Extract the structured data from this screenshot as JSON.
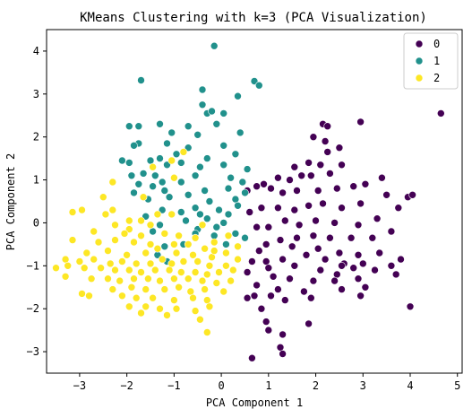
{
  "chart_data": {
    "type": "scatter",
    "title": "KMeans Clustering with k=3 (PCA Visualization)",
    "xlabel": "PCA Component 1",
    "ylabel": "PCA Component 2",
    "xlim": [
      -3.7,
      5.1
    ],
    "ylim": [
      -3.5,
      4.5
    ],
    "xticks": [
      -3,
      -2,
      -1,
      0,
      1,
      2,
      3,
      4,
      5
    ],
    "yticks": [
      -3,
      -2,
      -1,
      0,
      1,
      2,
      3,
      4
    ],
    "grid": false,
    "legend": "top-right",
    "series": [
      {
        "name": "0",
        "color": "#440154",
        "points": [
          [
            4.65,
            2.55
          ],
          [
            2.95,
            2.35
          ],
          [
            2.15,
            2.3
          ],
          [
            2.25,
            2.25
          ],
          [
            1.95,
            2.0
          ],
          [
            2.2,
            1.9
          ],
          [
            2.5,
            1.75
          ],
          [
            1.55,
            1.3
          ],
          [
            2.25,
            1.65
          ],
          [
            2.1,
            1.35
          ],
          [
            1.85,
            1.4
          ],
          [
            2.55,
            1.35
          ],
          [
            2.3,
            1.15
          ],
          [
            1.9,
            1.1
          ],
          [
            1.7,
            1.1
          ],
          [
            1.45,
            1.0
          ],
          [
            1.2,
            1.05
          ],
          [
            1.05,
            0.8
          ],
          [
            0.9,
            0.9
          ],
          [
            3.4,
            1.05
          ],
          [
            3.05,
            0.9
          ],
          [
            2.8,
            0.85
          ],
          [
            2.45,
            0.8
          ],
          [
            2.05,
            0.75
          ],
          [
            1.6,
            0.75
          ],
          [
            1.3,
            0.7
          ],
          [
            0.75,
            0.85
          ],
          [
            0.55,
            0.75
          ],
          [
            3.5,
            0.65
          ],
          [
            3.95,
            0.6
          ],
          [
            2.95,
            0.45
          ],
          [
            2.55,
            0.35
          ],
          [
            2.15,
            0.45
          ],
          [
            1.85,
            0.4
          ],
          [
            1.55,
            0.3
          ],
          [
            1.2,
            0.35
          ],
          [
            0.85,
            0.35
          ],
          [
            0.6,
            0.25
          ],
          [
            3.75,
            0.35
          ],
          [
            3.3,
            0.1
          ],
          [
            2.9,
            -0.05
          ],
          [
            2.4,
            0.0
          ],
          [
            2.0,
            0.05
          ],
          [
            1.65,
            -0.05
          ],
          [
            1.35,
            0.05
          ],
          [
            1.0,
            -0.1
          ],
          [
            0.75,
            -0.1
          ],
          [
            3.6,
            -0.2
          ],
          [
            3.2,
            -0.35
          ],
          [
            2.75,
            -0.35
          ],
          [
            2.3,
            -0.35
          ],
          [
            1.95,
            -0.3
          ],
          [
            1.6,
            -0.35
          ],
          [
            1.25,
            -0.4
          ],
          [
            0.95,
            -0.5
          ],
          [
            0.8,
            -0.65
          ],
          [
            1.5,
            -0.55
          ],
          [
            2.05,
            -0.6
          ],
          [
            2.5,
            -0.7
          ],
          [
            2.9,
            -0.75
          ],
          [
            3.35,
            -0.7
          ],
          [
            3.8,
            -0.85
          ],
          [
            0.95,
            -0.9
          ],
          [
            1.3,
            -0.85
          ],
          [
            1.8,
            -0.75
          ],
          [
            2.2,
            -0.85
          ],
          [
            2.6,
            -0.95
          ],
          [
            3.0,
            -0.95
          ],
          [
            3.6,
            -1.0
          ],
          [
            2.55,
            -1.0
          ],
          [
            2.8,
            -1.05
          ],
          [
            3.25,
            -1.1
          ],
          [
            1.0,
            -1.05
          ],
          [
            1.55,
            -1.0
          ],
          [
            2.1,
            -1.1
          ],
          [
            2.45,
            -1.2
          ],
          [
            3.7,
            -1.2
          ],
          [
            1.1,
            -1.25
          ],
          [
            1.45,
            -1.3
          ],
          [
            1.95,
            -1.35
          ],
          [
            2.4,
            -1.35
          ],
          [
            2.9,
            -1.3
          ],
          [
            3.05,
            -1.5
          ],
          [
            0.65,
            -0.9
          ],
          [
            0.75,
            -1.45
          ],
          [
            1.2,
            -1.55
          ],
          [
            1.75,
            -1.6
          ],
          [
            2.55,
            -1.55
          ],
          [
            2.95,
            -1.7
          ],
          [
            0.55,
            -1.75
          ],
          [
            1.05,
            -1.7
          ],
          [
            1.35,
            -1.8
          ],
          [
            1.9,
            -1.75
          ],
          [
            0.85,
            -2.0
          ],
          [
            4.0,
            -1.95
          ],
          [
            0.95,
            -2.3
          ],
          [
            1.85,
            -2.35
          ],
          [
            1.3,
            -2.6
          ],
          [
            1.0,
            -2.5
          ],
          [
            1.25,
            -2.9
          ],
          [
            0.65,
            -3.15
          ],
          [
            1.3,
            -3.05
          ],
          [
            0.55,
            -1.15
          ],
          [
            0.7,
            -1.7
          ],
          [
            4.05,
            0.65
          ]
        ]
      },
      {
        "name": "1",
        "color": "#21918c",
        "points": [
          [
            -0.15,
            4.12
          ],
          [
            -1.7,
            3.32
          ],
          [
            0.7,
            3.3
          ],
          [
            0.8,
            3.2
          ],
          [
            -0.4,
            3.1
          ],
          [
            0.35,
            2.95
          ],
          [
            -0.4,
            2.75
          ],
          [
            -0.3,
            2.55
          ],
          [
            -0.2,
            2.6
          ],
          [
            0.05,
            2.55
          ],
          [
            -1.3,
            2.3
          ],
          [
            -0.7,
            2.25
          ],
          [
            -1.75,
            2.25
          ],
          [
            -1.95,
            2.25
          ],
          [
            -0.1,
            2.3
          ],
          [
            -1.05,
            2.1
          ],
          [
            0.4,
            2.1
          ],
          [
            -0.5,
            2.05
          ],
          [
            -1.15,
            1.85
          ],
          [
            -1.75,
            1.85
          ],
          [
            -1.85,
            1.8
          ],
          [
            0.05,
            1.8
          ],
          [
            -0.7,
            1.75
          ],
          [
            -0.95,
            1.6
          ],
          [
            0.3,
            1.6
          ],
          [
            -1.3,
            1.5
          ],
          [
            -0.3,
            1.5
          ],
          [
            -2.1,
            1.45
          ],
          [
            -1.95,
            1.4
          ],
          [
            -1.5,
            1.45
          ],
          [
            -0.85,
            1.4
          ],
          [
            -1.15,
            1.35
          ],
          [
            0.05,
            1.35
          ],
          [
            -0.45,
            1.3
          ],
          [
            0.55,
            1.25
          ],
          [
            -1.65,
            1.15
          ],
          [
            -1.4,
            1.1
          ],
          [
            -1.9,
            1.1
          ],
          [
            -0.55,
            1.1
          ],
          [
            0.2,
            1.05
          ],
          [
            0.45,
            0.95
          ],
          [
            -1.25,
            0.95
          ],
          [
            -0.85,
            0.95
          ],
          [
            -1.75,
            0.9
          ],
          [
            0.15,
            0.8
          ],
          [
            -1.45,
            0.85
          ],
          [
            -0.35,
            0.75
          ],
          [
            0.5,
            0.7
          ],
          [
            -1.2,
            0.75
          ],
          [
            -1.85,
            0.7
          ],
          [
            -0.7,
            0.65
          ],
          [
            -1.1,
            0.6
          ],
          [
            0.3,
            0.55
          ],
          [
            -0.25,
            0.5
          ],
          [
            -1.55,
            0.55
          ],
          [
            0.35,
            0.4
          ],
          [
            -0.55,
            0.35
          ],
          [
            -0.05,
            0.3
          ],
          [
            -1.25,
            0.3
          ],
          [
            -0.85,
            0.25
          ],
          [
            0.15,
            0.2
          ],
          [
            -1.6,
            0.15
          ],
          [
            -0.45,
            0.2
          ],
          [
            -0.3,
            0.1
          ],
          [
            -0.75,
            0.05
          ],
          [
            0.05,
            0.0
          ],
          [
            -1.3,
            -0.05
          ],
          [
            -0.5,
            -0.15
          ],
          [
            0.3,
            -0.25
          ],
          [
            -0.15,
            -0.3
          ],
          [
            -1.45,
            -0.2
          ],
          [
            -1.2,
            -0.55
          ],
          [
            -0.8,
            -0.5
          ],
          [
            0.1,
            -0.5
          ],
          [
            -1.35,
            -0.75
          ],
          [
            -1.15,
            -0.9
          ],
          [
            -0.55,
            -0.25
          ],
          [
            -0.1,
            -0.1
          ],
          [
            0.5,
            -0.35
          ]
        ]
      },
      {
        "name": "2",
        "color": "#fde725",
        "points": [
          [
            -0.8,
            1.65
          ],
          [
            -1.05,
            1.45
          ],
          [
            -1.45,
            1.3
          ],
          [
            -1.0,
            1.05
          ],
          [
            -2.3,
            0.95
          ],
          [
            -1.65,
            0.6
          ],
          [
            -2.5,
            0.6
          ],
          [
            -2.3,
            0.3
          ],
          [
            -3.15,
            0.25
          ],
          [
            -2.95,
            0.3
          ],
          [
            -2.45,
            0.2
          ],
          [
            -1.95,
            0.05
          ],
          [
            -1.7,
            0.05
          ],
          [
            -1.35,
            0.2
          ],
          [
            -1.05,
            0.2
          ],
          [
            -2.25,
            -0.05
          ],
          [
            -1.5,
            -0.05
          ],
          [
            -1.95,
            -0.15
          ],
          [
            -1.2,
            -0.25
          ],
          [
            -2.7,
            -0.2
          ],
          [
            -2.05,
            -0.25
          ],
          [
            -1.7,
            -0.3
          ],
          [
            -0.9,
            -0.3
          ],
          [
            -0.55,
            -0.35
          ],
          [
            -0.15,
            -0.45
          ],
          [
            -2.6,
            -0.45
          ],
          [
            -2.25,
            -0.4
          ],
          [
            -1.85,
            -0.45
          ],
          [
            -1.5,
            -0.5
          ],
          [
            -1.0,
            -0.5
          ],
          [
            -0.7,
            -0.5
          ],
          [
            -0.35,
            -0.6
          ],
          [
            -3.15,
            -0.4
          ],
          [
            -2.85,
            -0.7
          ],
          [
            -2.4,
            -0.65
          ],
          [
            -2.0,
            -0.75
          ],
          [
            -1.6,
            -0.7
          ],
          [
            -1.35,
            -0.6
          ],
          [
            -0.95,
            -0.7
          ],
          [
            -0.6,
            -0.75
          ],
          [
            -0.2,
            -0.8
          ],
          [
            0.1,
            -0.7
          ],
          [
            -3.3,
            -0.85
          ],
          [
            -3.0,
            -0.9
          ],
          [
            -2.7,
            -0.85
          ],
          [
            -2.35,
            -0.95
          ],
          [
            -2.1,
            -0.9
          ],
          [
            -1.8,
            -0.95
          ],
          [
            -1.5,
            -0.95
          ],
          [
            -1.25,
            -0.85
          ],
          [
            -1.05,
            -0.95
          ],
          [
            -0.8,
            -0.9
          ],
          [
            -0.5,
            -0.9
          ],
          [
            -0.25,
            -1.0
          ],
          [
            0.1,
            -1.0
          ],
          [
            0.35,
            -0.85
          ],
          [
            -3.25,
            -1.0
          ],
          [
            -3.5,
            -1.05
          ],
          [
            -2.9,
            -1.05
          ],
          [
            -2.55,
            -1.05
          ],
          [
            -2.25,
            -1.1
          ],
          [
            -1.95,
            -1.1
          ],
          [
            -1.7,
            -1.15
          ],
          [
            -1.4,
            -1.1
          ],
          [
            -1.1,
            -1.1
          ],
          [
            -0.85,
            -1.15
          ],
          [
            -0.55,
            -1.15
          ],
          [
            -0.3,
            -1.2
          ],
          [
            -0.05,
            -1.15
          ],
          [
            0.25,
            -1.1
          ],
          [
            -3.3,
            -1.25
          ],
          [
            -2.75,
            -1.3
          ],
          [
            -2.4,
            -1.3
          ],
          [
            -2.15,
            -1.35
          ],
          [
            -1.85,
            -1.3
          ],
          [
            -1.55,
            -1.3
          ],
          [
            -1.3,
            -1.35
          ],
          [
            -1.0,
            -1.3
          ],
          [
            -0.7,
            -1.3
          ],
          [
            -0.4,
            -1.35
          ],
          [
            -0.1,
            -1.4
          ],
          [
            0.2,
            -1.35
          ],
          [
            -2.3,
            -1.55
          ],
          [
            -1.9,
            -1.5
          ],
          [
            -1.6,
            -1.55
          ],
          [
            -1.2,
            -1.55
          ],
          [
            -0.9,
            -1.5
          ],
          [
            -0.65,
            -1.6
          ],
          [
            -0.35,
            -1.55
          ],
          [
            -2.1,
            -1.7
          ],
          [
            -1.8,
            -1.75
          ],
          [
            -1.45,
            -1.75
          ],
          [
            -1.0,
            -1.8
          ],
          [
            -0.6,
            -1.75
          ],
          [
            -0.3,
            -1.8
          ],
          [
            0.05,
            -1.6
          ],
          [
            -2.95,
            -1.65
          ],
          [
            -2.8,
            -1.7
          ],
          [
            -1.95,
            -1.95
          ],
          [
            -1.6,
            -1.95
          ],
          [
            -1.3,
            -2.0
          ],
          [
            -0.95,
            -2.0
          ],
          [
            -0.55,
            -2.05
          ],
          [
            -0.25,
            -1.95
          ],
          [
            -1.7,
            -2.1
          ],
          [
            -1.15,
            -2.15
          ],
          [
            -0.45,
            -2.25
          ],
          [
            -0.3,
            -2.55
          ],
          [
            0.15,
            -0.3
          ],
          [
            -0.4,
            -0.05
          ],
          [
            0.35,
            -0.55
          ],
          [
            -0.15,
            -0.65
          ]
        ]
      }
    ]
  }
}
